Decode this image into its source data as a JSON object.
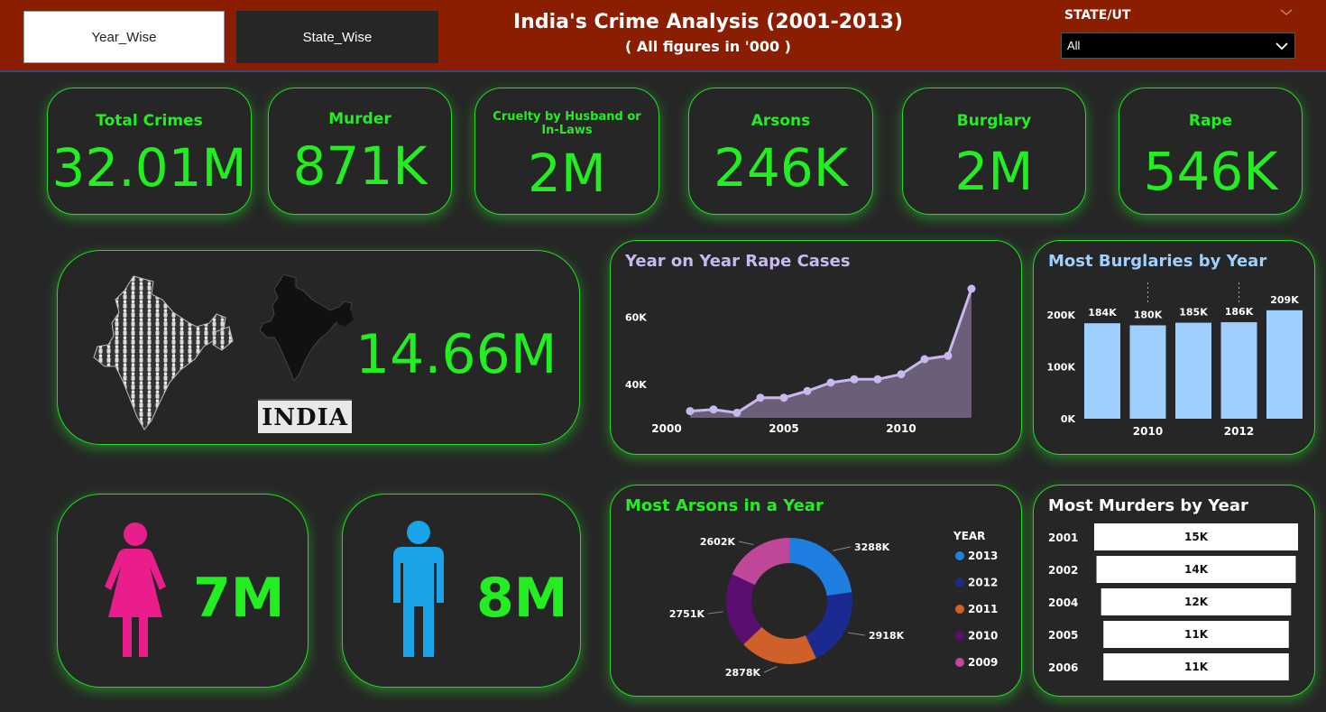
{
  "header": {
    "tab_year": "Year_Wise",
    "tab_state": "State_Wise",
    "title": "India's Crime Analysis (2001-2013)",
    "subtitle": "( All figures in '000 )",
    "slicer_label": "STATE/UT",
    "slicer_value": "All"
  },
  "kpis": [
    {
      "label": "Total Crimes",
      "value": "32.01M"
    },
    {
      "label": "Murder",
      "value": "871K"
    },
    {
      "label": "Cruelty by Husband or In-Laws",
      "value": "2M"
    },
    {
      "label": "Arsons",
      "value": "246K"
    },
    {
      "label": "Burglary",
      "value": "2M"
    },
    {
      "label": "Rape",
      "value": "546K"
    }
  ],
  "india": {
    "caption": "INDIA",
    "value": "14.66M"
  },
  "female": {
    "value": "7M"
  },
  "male": {
    "value": "8M"
  },
  "colors": {
    "accent": "#22ee22",
    "header": "#8b1d00",
    "rape_line": "#c8b8f0",
    "burglary_bar": "#9ecfff",
    "female": "#e91e8c",
    "male": "#1aa3e8"
  },
  "chart_data": [
    {
      "type": "area",
      "title": "Year on Year Rape Cases",
      "x": [
        2001,
        2002,
        2003,
        2004,
        2005,
        2006,
        2007,
        2008,
        2009,
        2010,
        2011,
        2012,
        2013
      ],
      "y": [
        32000,
        32500,
        31500,
        36000,
        36000,
        38000,
        40500,
        41500,
        41500,
        43000,
        47500,
        48500,
        68500
      ],
      "xticks": [
        "2000",
        "2005",
        "2010"
      ],
      "yticks": [
        "40K",
        "60K"
      ],
      "ylim": [
        30000,
        72000
      ]
    },
    {
      "type": "bar",
      "title": "Most Burglaries by Year",
      "categories": [
        "2009",
        "2010",
        "2011",
        "2012",
        "2013"
      ],
      "values": [
        184,
        180,
        185,
        186,
        209
      ],
      "data_labels": [
        "184K",
        "180K",
        "185K",
        "186K",
        "209K"
      ],
      "xticks": [
        "2010",
        "2012"
      ],
      "yticks": [
        "0K",
        "100K",
        "200K"
      ],
      "ylim": [
        0,
        200
      ]
    },
    {
      "type": "pie",
      "title": "Most Arsons in a Year",
      "legend_title": "YEAR",
      "categories": [
        "2013",
        "2012",
        "2011",
        "2010",
        "2009"
      ],
      "values": [
        3288,
        2918,
        2878,
        2751,
        2602
      ],
      "data_labels": [
        "3288K",
        "2918K",
        "2878K",
        "2751K",
        "2602K"
      ],
      "colors": [
        "#1e7fe0",
        "#1a2a90",
        "#d0602a",
        "#5a0f70",
        "#c0479a"
      ]
    },
    {
      "type": "bar",
      "title": "Most Murders by Year",
      "categories": [
        "2001",
        "2002",
        "2004",
        "2005",
        "2006"
      ],
      "values": [
        15,
        14,
        12,
        11,
        11
      ],
      "data_labels": [
        "15K",
        "14K",
        "12K",
        "11K",
        "11K"
      ]
    }
  ]
}
